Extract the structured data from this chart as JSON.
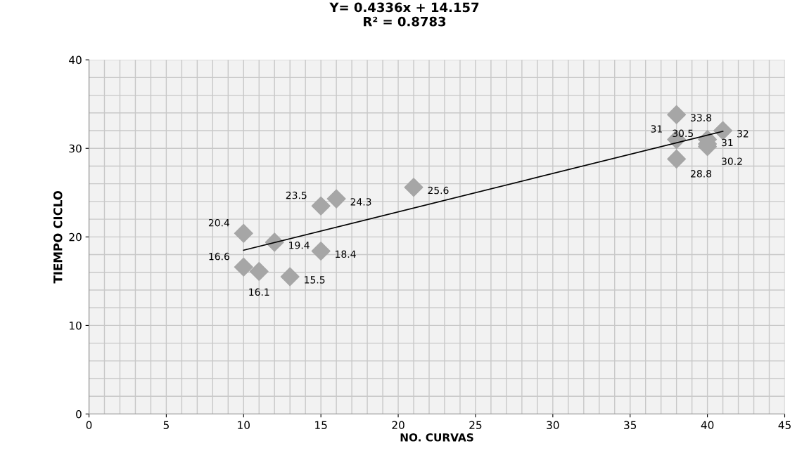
{
  "chart_data": {
    "type": "scatter",
    "title": "Y= 0.4336x + 14.157\nR² = 0.8783",
    "xlabel": "NO. CURVAS",
    "ylabel": "TIEMPO CICLO",
    "xlim": [
      0,
      45
    ],
    "xticks": [
      0,
      5,
      10,
      15,
      20,
      25,
      30,
      35,
      40,
      45
    ],
    "ylim": [
      0,
      40
    ],
    "yticks": [
      0,
      10,
      20,
      30,
      40
    ],
    "grid": true,
    "legend": false,
    "series": [
      {
        "color": "#a6a6a6",
        "marker": "diamond",
        "data_labels": true,
        "x": [
          10,
          12,
          10,
          11,
          13,
          15,
          15,
          16,
          21,
          38,
          38,
          38,
          40,
          40,
          40,
          41
        ],
        "values": [
          20.4,
          19.4,
          16.6,
          16.1,
          15.5,
          18.4,
          23.5,
          24.3,
          25.6,
          33.8,
          31,
          28.8,
          31,
          30.2,
          30.5,
          32
        ]
      },
      {
        "type": "line",
        "color": "#000000",
        "marker": "none",
        "x": [
          10,
          41
        ],
        "values": [
          18.49,
          31.93
        ]
      }
    ]
  }
}
